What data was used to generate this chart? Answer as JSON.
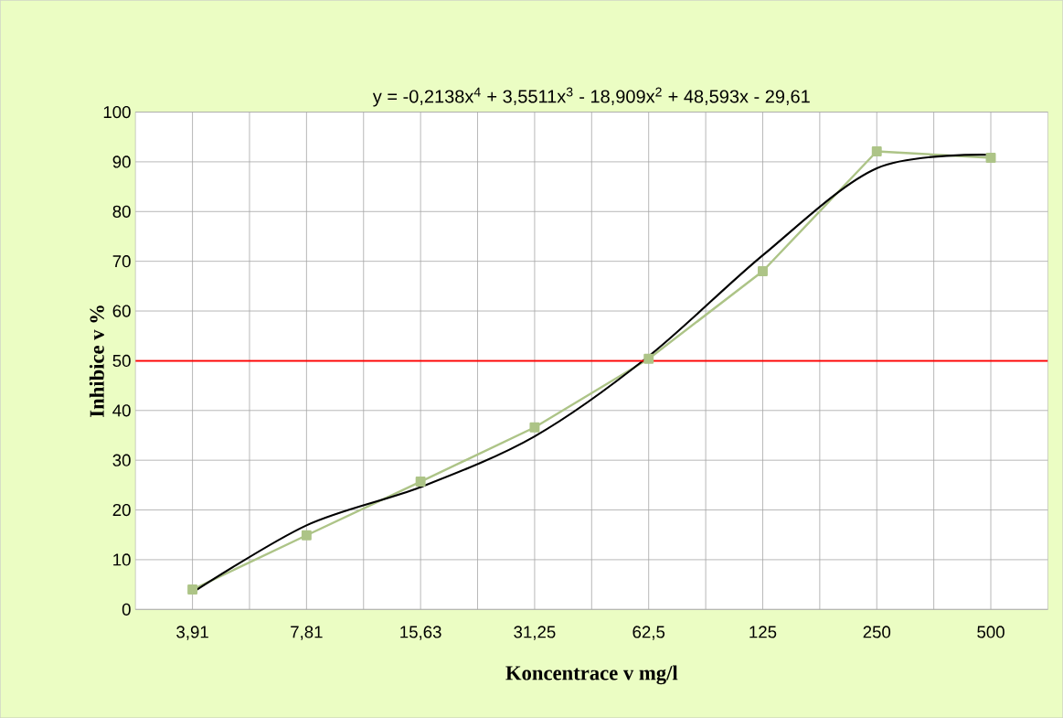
{
  "chart_data": {
    "type": "line",
    "annotations": [
      "y = -0,2138x$^{4}$ + 3,5511x$^{3}$ - 18,909x$^{2}$ + 48,593x - 29,61"
    ],
    "xlabel": "Koncentrace v mg/l",
    "ylabel": "Inhibice v %",
    "categories": [
      "3,91",
      "7,81",
      "15,63",
      "31,25",
      "62,5",
      "125",
      "250",
      "500"
    ],
    "series": [
      {
        "color": "#adc487",
        "marker": "square",
        "values": [
          4.0,
          14.9,
          25.7,
          36.6,
          50.4,
          68.0,
          92.1,
          90.8
        ]
      },
      {
        "type": "line",
        "color": "#000000",
        "marker": "none",
        "values": [
          3.4,
          16.9,
          24.6,
          34.8,
          50.9,
          71.2,
          88.7,
          91.4
        ]
      }
    ],
    "ylim": [
      0,
      100
    ],
    "yticks": [
      0,
      10,
      20,
      30,
      40,
      50,
      60,
      70,
      80,
      90,
      100
    ],
    "ref_lines": [
      {
        "axis": "y",
        "value": 50,
        "color": "#ff0000"
      }
    ],
    "grid": true
  }
}
